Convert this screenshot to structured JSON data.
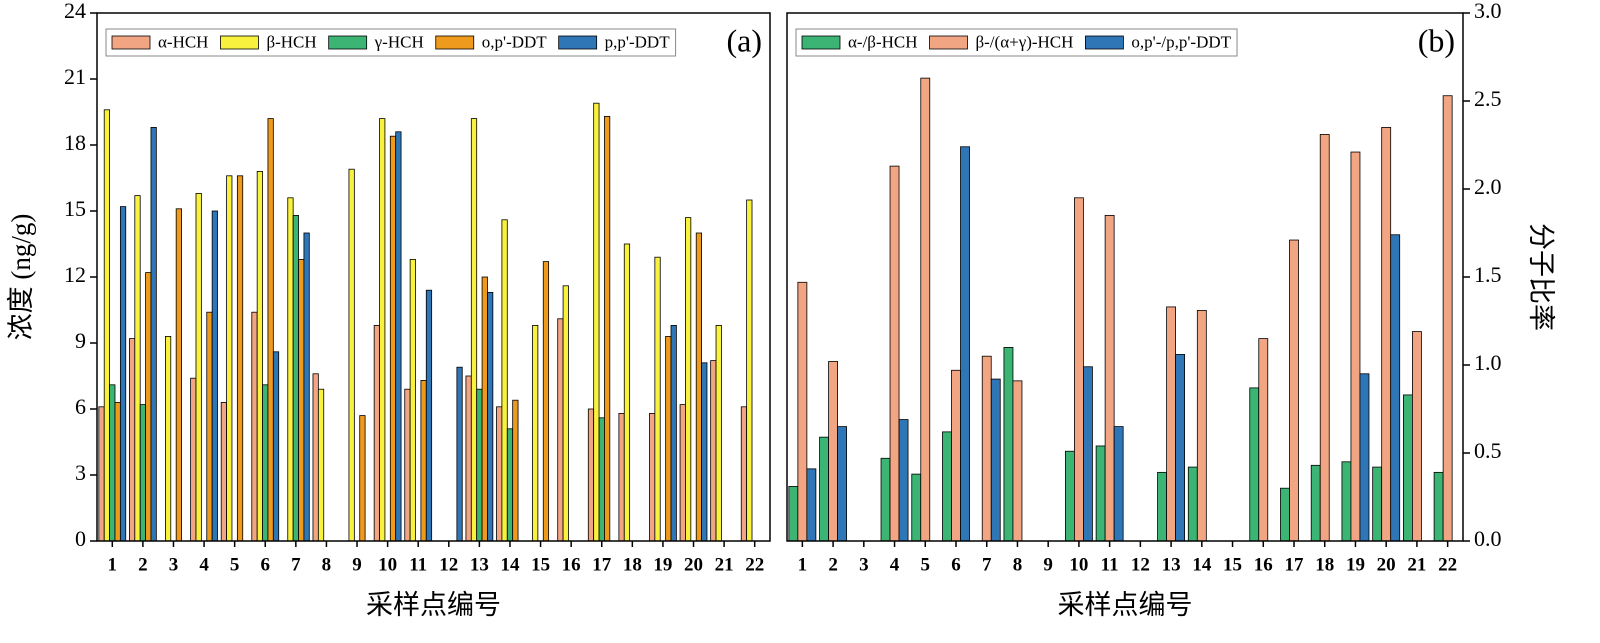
{
  "chart_data": [
    {
      "type": "bar",
      "panel_label": "(a)",
      "x_label": "采样点编号",
      "y_label": "浓度 (ng/g)",
      "y_axis_side": "left",
      "legend": "top",
      "categories": [
        "1",
        "2",
        "3",
        "4",
        "5",
        "6",
        "7",
        "8",
        "9",
        "10",
        "11",
        "12",
        "13",
        "14",
        "15",
        "16",
        "17",
        "18",
        "19",
        "20",
        "21",
        "22"
      ],
      "series": [
        {
          "name": "α-HCH",
          "color": "#f2a582",
          "values": [
            6.1,
            9.2,
            0,
            7.4,
            6.3,
            10.4,
            0,
            7.6,
            0,
            9.8,
            6.9,
            0,
            7.5,
            6.1,
            0,
            10.1,
            6.0,
            5.8,
            5.8,
            6.2,
            8.2,
            6.1
          ]
        },
        {
          "name": "β-HCH",
          "color": "#f8f23e",
          "values": [
            19.6,
            15.7,
            9.3,
            15.8,
            16.6,
            16.8,
            15.6,
            6.9,
            16.9,
            19.2,
            12.8,
            0,
            19.2,
            14.6,
            9.8,
            11.6,
            19.9,
            13.5,
            12.9,
            14.7,
            9.8,
            15.5
          ]
        },
        {
          "name": "γ-HCH",
          "color": "#3cb474",
          "values": [
            7.1,
            6.2,
            0,
            0,
            0,
            7.1,
            14.8,
            0,
            0,
            0,
            0,
            0,
            6.9,
            5.1,
            0,
            0,
            5.6,
            0,
            0,
            0,
            0,
            0
          ]
        },
        {
          "name": "o,p'-DDT",
          "color": "#ee9a1c",
          "values": [
            6.3,
            12.2,
            15.1,
            10.4,
            16.6,
            19.2,
            12.8,
            0,
            5.7,
            18.4,
            7.3,
            0,
            12.0,
            6.4,
            12.7,
            0,
            19.3,
            0,
            9.3,
            14.0,
            0,
            0
          ]
        },
        {
          "name": "p,p'-DDT",
          "color": "#2f76b7",
          "values": [
            15.2,
            18.8,
            0,
            15.0,
            0,
            8.6,
            14.0,
            0,
            0,
            18.6,
            11.4,
            7.9,
            11.3,
            0,
            0,
            0,
            0,
            0,
            9.8,
            8.1,
            0,
            0
          ]
        }
      ],
      "ylim": [
        0,
        24
      ],
      "yticks": [
        0,
        3,
        6,
        9,
        12,
        15,
        18,
        21,
        24
      ]
    },
    {
      "type": "bar",
      "panel_label": "(b)",
      "x_label": "采样点编号",
      "y_label": "分子比率",
      "y_axis_side": "right",
      "legend": "top",
      "categories": [
        "1",
        "2",
        "3",
        "4",
        "5",
        "6",
        "7",
        "8",
        "9",
        "10",
        "11",
        "12",
        "13",
        "14",
        "15",
        "16",
        "17",
        "18",
        "19",
        "20",
        "21",
        "22"
      ],
      "series": [
        {
          "name": "α-/β-HCH",
          "color": "#3cb474",
          "values": [
            0.31,
            0.59,
            0,
            0.47,
            0.38,
            0.62,
            0,
            1.1,
            0,
            0.51,
            0.54,
            0,
            0.39,
            0.42,
            0,
            0.87,
            0.3,
            0.43,
            0.45,
            0.42,
            0.83,
            0.39
          ]
        },
        {
          "name": "β-/(α+γ)-HCH",
          "color": "#f2a582",
          "values": [
            1.47,
            1.02,
            0,
            2.13,
            2.63,
            0.97,
            1.05,
            0.91,
            0,
            1.95,
            1.85,
            0,
            1.33,
            1.31,
            0,
            1.15,
            1.71,
            2.31,
            2.21,
            2.35,
            1.19,
            2.53
          ]
        },
        {
          "name": "o,p'-/p,p'-DDT",
          "color": "#2f76b7",
          "values": [
            0.41,
            0.65,
            0,
            0.69,
            0,
            2.24,
            0.92,
            0,
            0,
            0.99,
            0.65,
            0,
            1.06,
            0,
            0,
            0,
            0,
            0,
            0.95,
            1.74,
            0,
            0
          ]
        }
      ],
      "ylim": [
        0,
        3
      ],
      "yticks": [
        {
          "value": 0,
          "label": "0.0"
        },
        0.5,
        {
          "value": 1,
          "label": "1.0"
        },
        1.5,
        {
          "value": 2,
          "label": "2.0"
        },
        2.5,
        {
          "value": 3,
          "label": "3.0"
        }
      ]
    }
  ]
}
